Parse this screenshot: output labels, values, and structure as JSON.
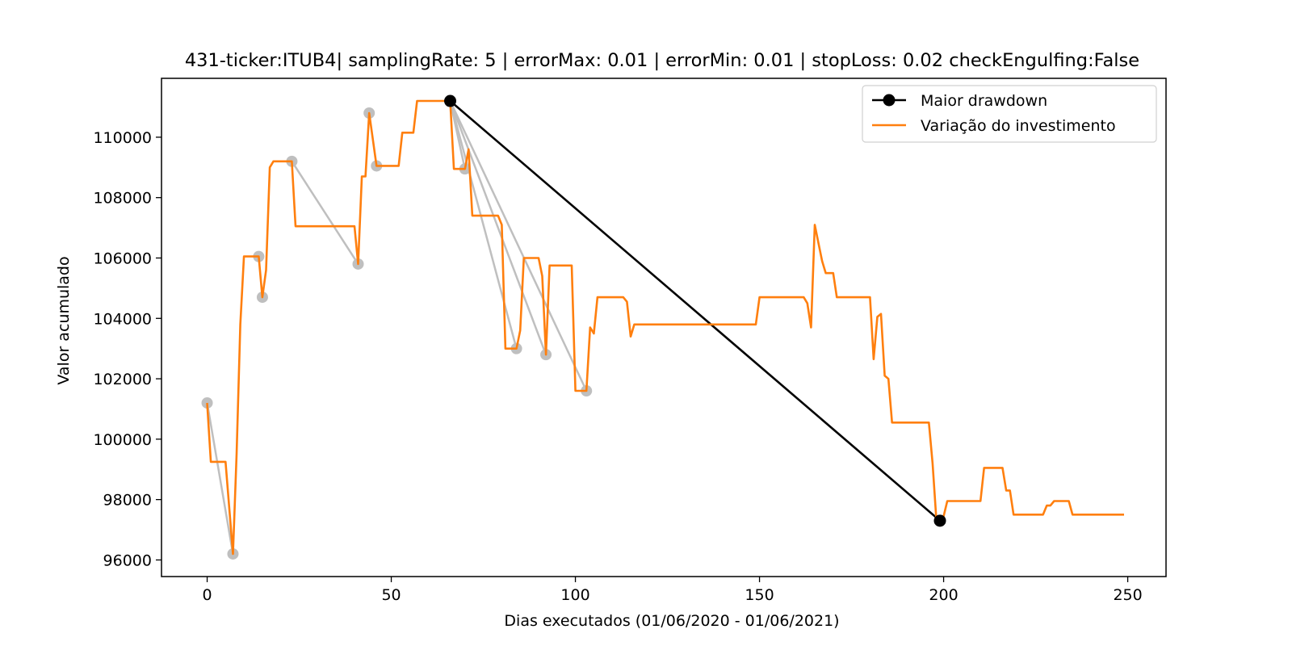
{
  "chart_data": {
    "type": "line",
    "title": "431-ticker:ITUB4| samplingRate: 5 | errorMax: 0.01 | errorMin: 0.01 | stopLoss: 0.02 checkEngulfing:False",
    "xlabel": "Dias executados (01/06/2020 - 01/06/2021)",
    "ylabel": "Valor acumulado",
    "xlim": [
      -12.4,
      260.4
    ],
    "ylim": [
      95450,
      111950
    ],
    "x_ticks": [
      0,
      50,
      100,
      150,
      200,
      250
    ],
    "y_ticks": [
      96000,
      98000,
      100000,
      102000,
      104000,
      106000,
      108000,
      110000
    ],
    "grid": false,
    "legend_position": "top-right",
    "colors": {
      "investment": "#ff7f0e",
      "drawdown": "#000000",
      "trades": "#bfbfbf"
    },
    "series": [
      {
        "name": "Variação do investimento",
        "style": "line",
        "points": [
          [
            0,
            101200
          ],
          [
            1,
            99250
          ],
          [
            5,
            99250
          ],
          [
            7,
            96200
          ],
          [
            8,
            99500
          ],
          [
            9,
            103800
          ],
          [
            10,
            106050
          ],
          [
            14,
            106050
          ],
          [
            15,
            104700
          ],
          [
            16,
            105600
          ],
          [
            17,
            109000
          ],
          [
            18,
            109200
          ],
          [
            23,
            109200
          ],
          [
            24,
            107050
          ],
          [
            40,
            107050
          ],
          [
            41,
            105800
          ],
          [
            42,
            108700
          ],
          [
            43,
            108700
          ],
          [
            44,
            110800
          ],
          [
            46,
            109050
          ],
          [
            52,
            109050
          ],
          [
            53,
            110150
          ],
          [
            56,
            110150
          ],
          [
            57,
            111200
          ],
          [
            66,
            111200
          ],
          [
            67,
            108950
          ],
          [
            70,
            108950
          ],
          [
            71,
            109600
          ],
          [
            72,
            107400
          ],
          [
            79,
            107400
          ],
          [
            80,
            107100
          ],
          [
            81,
            103000
          ],
          [
            84,
            103000
          ],
          [
            85,
            103600
          ],
          [
            86,
            106000
          ],
          [
            90,
            106000
          ],
          [
            91,
            105400
          ],
          [
            92,
            102800
          ],
          [
            93,
            105750
          ],
          [
            99,
            105750
          ],
          [
            100,
            101600
          ],
          [
            103,
            101600
          ],
          [
            104,
            103700
          ],
          [
            105,
            103500
          ],
          [
            106,
            104700
          ],
          [
            113,
            104700
          ],
          [
            114,
            104550
          ],
          [
            115,
            103400
          ],
          [
            116,
            103800
          ],
          [
            149,
            103800
          ],
          [
            150,
            104700
          ],
          [
            162,
            104700
          ],
          [
            163,
            104500
          ],
          [
            164,
            103700
          ],
          [
            165,
            107100
          ],
          [
            166,
            106500
          ],
          [
            167,
            105900
          ],
          [
            168,
            105500
          ],
          [
            170,
            105500
          ],
          [
            171,
            104700
          ],
          [
            180,
            104700
          ],
          [
            181,
            102650
          ],
          [
            182,
            104050
          ],
          [
            183,
            104150
          ],
          [
            184,
            102100
          ],
          [
            185,
            102000
          ],
          [
            186,
            100550
          ],
          [
            196,
            100550
          ],
          [
            197,
            99200
          ],
          [
            198,
            97400
          ],
          [
            199,
            97300
          ],
          [
            200,
            97450
          ],
          [
            201,
            97950
          ],
          [
            210,
            97950
          ],
          [
            211,
            99050
          ],
          [
            216,
            99050
          ],
          [
            217,
            98300
          ],
          [
            218,
            98300
          ],
          [
            219,
            97500
          ],
          [
            227,
            97500
          ],
          [
            228,
            97800
          ],
          [
            229,
            97800
          ],
          [
            230,
            97950
          ],
          [
            234,
            97950
          ],
          [
            235,
            97500
          ],
          [
            249,
            97500
          ]
        ]
      },
      {
        "name": "Maior drawdown",
        "style": "line-marker",
        "points": [
          [
            66,
            111200
          ],
          [
            199,
            97300
          ]
        ]
      },
      {
        "name": "",
        "style": "trade-segments",
        "segments": [
          [
            [
              0,
              101200
            ],
            [
              7,
              96200
            ]
          ],
          [
            [
              23,
              109200
            ],
            [
              41,
              105800
            ]
          ],
          [
            [
              66,
              111200
            ],
            [
              84,
              103000
            ]
          ],
          [
            [
              66,
              111200
            ],
            [
              92,
              102800
            ]
          ],
          [
            [
              66,
              111200
            ],
            [
              103,
              101600
            ]
          ],
          [
            [
              66,
              111200
            ],
            [
              70,
              108950
            ]
          ]
        ],
        "markers": [
          [
            0,
            101200
          ],
          [
            7,
            96200
          ],
          [
            14,
            106050
          ],
          [
            15,
            104700
          ],
          [
            23,
            109200
          ],
          [
            41,
            105800
          ],
          [
            44,
            110800
          ],
          [
            46,
            109050
          ],
          [
            66,
            111200
          ],
          [
            70,
            108950
          ],
          [
            84,
            103000
          ],
          [
            92,
            102800
          ],
          [
            103,
            101600
          ]
        ]
      }
    ]
  }
}
